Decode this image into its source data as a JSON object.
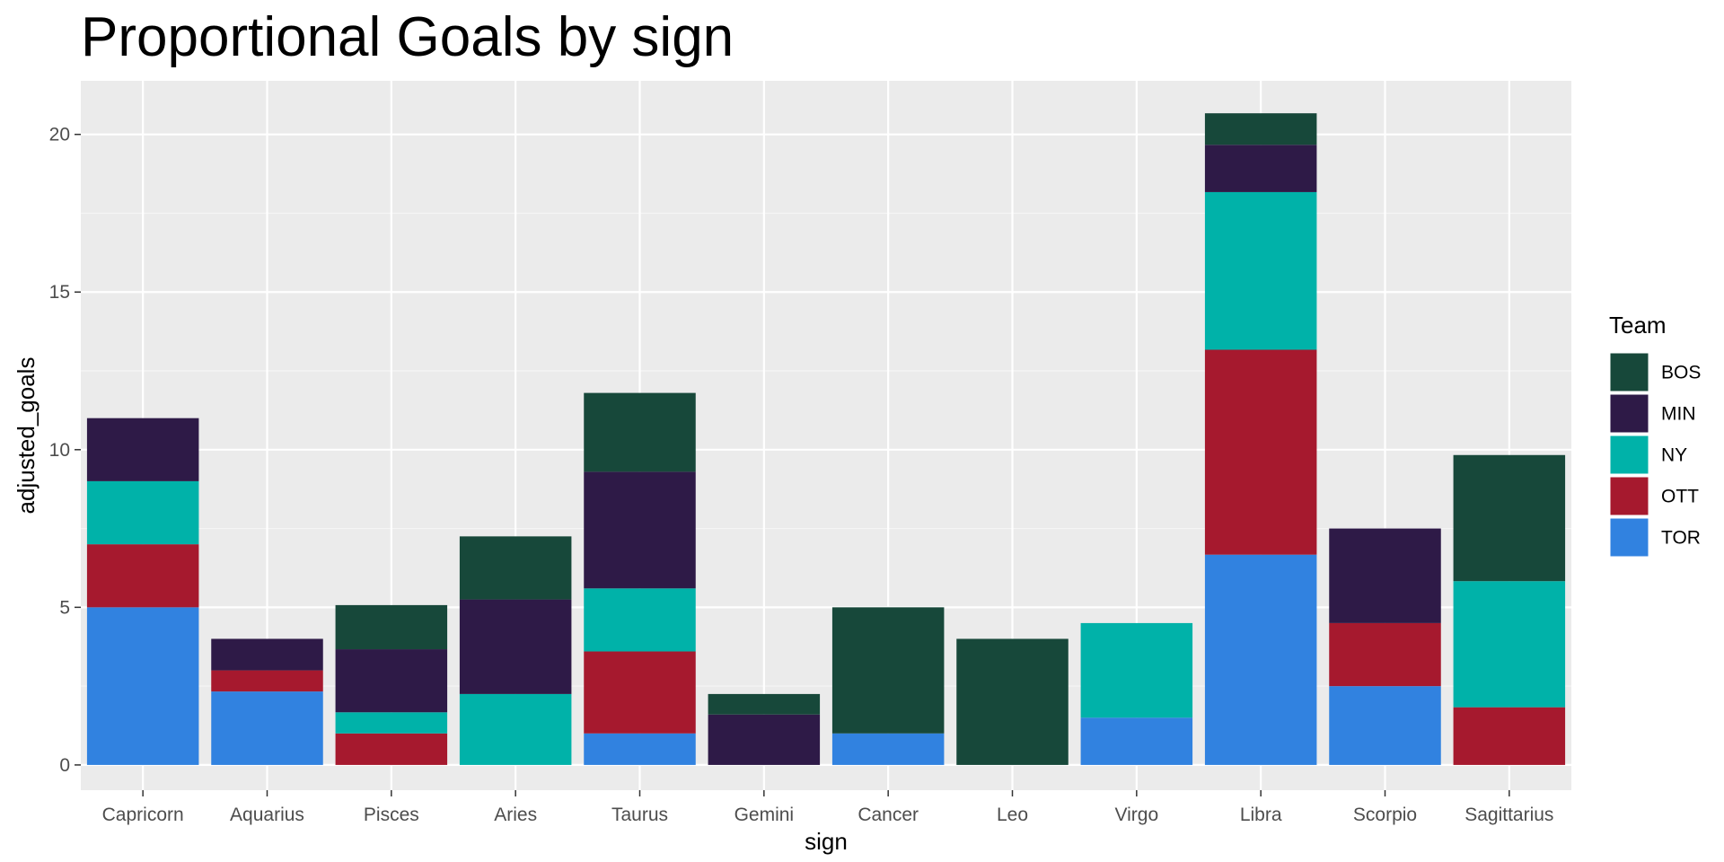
{
  "chart_data": {
    "type": "bar",
    "stacked": true,
    "title": "Proportional Goals by sign",
    "xlabel": "sign",
    "ylabel": "adjusted_goals",
    "ylim": [
      -0.8,
      21.7
    ],
    "yticks": [
      0,
      5,
      10,
      15,
      20
    ],
    "grid": true,
    "legend": {
      "title": "Team",
      "placement": "right"
    },
    "categories": [
      "Capricorn",
      "Aquarius",
      "Pisces",
      "Aries",
      "Taurus",
      "Gemini",
      "Cancer",
      "Leo",
      "Virgo",
      "Libra",
      "Scorpio",
      "Sagittarius"
    ],
    "series": [
      {
        "name": "BOS",
        "color": "#17483A",
        "values": [
          0,
          0,
          1.4,
          2.0,
          2.5,
          0.65,
          4.0,
          4.0,
          0,
          1.0,
          0,
          4.0
        ]
      },
      {
        "name": "MIN",
        "color": "#2E1A47",
        "values": [
          2.0,
          1.0,
          2.0,
          3.0,
          3.7,
          1.6,
          0,
          0,
          0,
          1.5,
          3.0,
          0
        ]
      },
      {
        "name": "NY",
        "color": "#00B2A9",
        "values": [
          2.0,
          0,
          0.67,
          2.25,
          2.0,
          0,
          0,
          0,
          3.0,
          5.0,
          0,
          4.0
        ]
      },
      {
        "name": "OTT",
        "color": "#A6192E",
        "values": [
          2.0,
          0.67,
          1.0,
          0,
          2.6,
          0,
          0,
          0,
          0,
          6.5,
          2.0,
          1.83
        ]
      },
      {
        "name": "TOR",
        "color": "#3182E0",
        "values": [
          5.0,
          2.33,
          0,
          0,
          1.0,
          0,
          1.0,
          0,
          1.5,
          6.67,
          2.5,
          0
        ]
      }
    ]
  }
}
